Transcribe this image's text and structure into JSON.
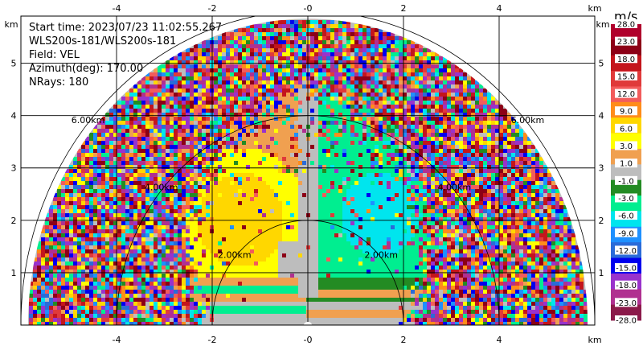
{
  "chart_data": {
    "type": "heatmap",
    "plot": "radar-rhi-sector",
    "info": {
      "start_time": "Start time: 2023/07/23 11:02:55.267",
      "instrument": "WLS200s-181/WLS200s-181",
      "field": "Field: VEL",
      "azimuth": "Azimuth(deg): 170.00",
      "nrays": "NRays: 180"
    },
    "x_axis": {
      "unit": "km",
      "range": [
        -6,
        6
      ],
      "ticks": [
        "-4",
        "-2",
        "-0",
        "2",
        "4"
      ],
      "tick_values": [
        -4,
        -2,
        0,
        2,
        4
      ]
    },
    "y_axis": {
      "unit": "km",
      "range": [
        0,
        5.9
      ],
      "ticks": [
        "1",
        "2",
        "3",
        "4",
        "5"
      ],
      "tick_values": [
        1,
        2,
        3,
        4,
        5
      ]
    },
    "range_rings": [
      {
        "r": 2,
        "label": "2.00km"
      },
      {
        "r": 4,
        "label": "4.00km"
      },
      {
        "r": 6,
        "label": "6.00km"
      }
    ],
    "max_range_km": 5.85,
    "colorbar": {
      "unit": "m/s",
      "labels": [
        "28.0",
        "23.0",
        "18.0",
        "15.0",
        "12.0",
        "9.0",
        "6.0",
        "3.0",
        "1.0",
        "-1.0",
        "-3.0",
        "-6.0",
        "-9.0",
        "-12.0",
        "-15.0",
        "-18.0",
        "-23.0",
        "-28.0"
      ],
      "colors": [
        "#b0002c",
        "#8c0016",
        "#c4151c",
        "#e03a3a",
        "#f25c5c",
        "#ff8c1a",
        "#ffd700",
        "#ffff00",
        "#f0a050",
        "#bdbdbd",
        "#238b23",
        "#00ee90",
        "#00e5ee",
        "#1e90ff",
        "#2a6bd8",
        "#0000ee",
        "#9932cc",
        "#b03090",
        "#8b1a4a"
      ]
    },
    "field_regions": [
      {
        "name": "near-zero-band",
        "value": 0
      },
      {
        "name": "receding-left-core",
        "value": 7
      },
      {
        "name": "approaching-right-core",
        "value": -8
      },
      {
        "name": "noise-aloft",
        "value": "random"
      }
    ]
  }
}
